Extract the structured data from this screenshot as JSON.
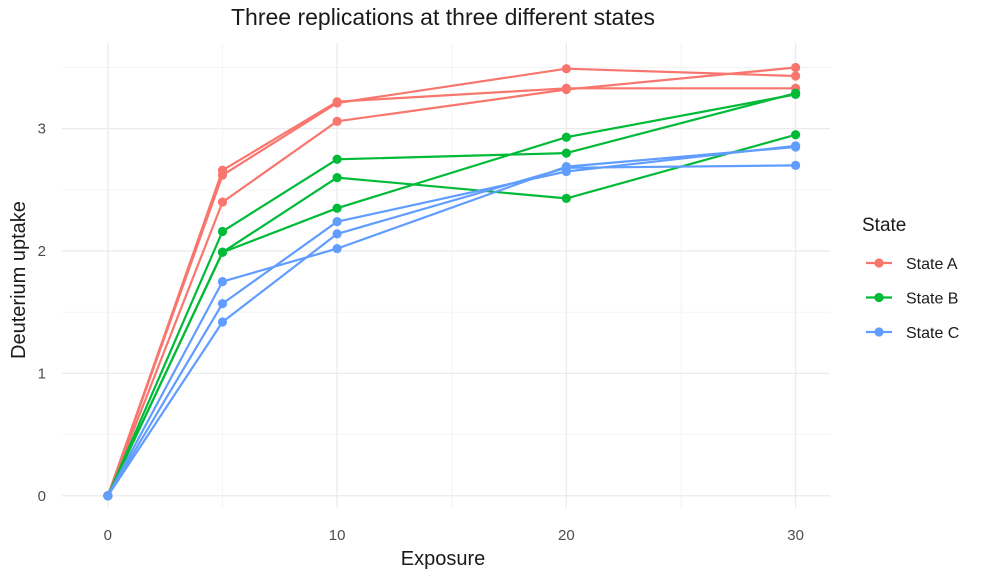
{
  "chart_data": {
    "type": "line",
    "title": "Three replications at three different states",
    "xlabel": "Exposure",
    "ylabel": "Deuterium uptake",
    "xlim": [
      -2,
      31.5
    ],
    "ylim": [
      -0.1,
      3.7
    ],
    "xticks": [
      0,
      10,
      20,
      30
    ],
    "yticks": [
      0,
      1,
      2,
      3
    ],
    "xminor": [
      5,
      15,
      25
    ],
    "yminor": [
      0.5,
      1.5,
      2.5,
      3.5
    ],
    "grid": true,
    "legend": {
      "title": "State",
      "position": "right",
      "entries": [
        {
          "label": "State A",
          "color": "#F8766D"
        },
        {
          "label": "State B",
          "color": "#00BA38"
        },
        {
          "label": "State C",
          "color": "#619CFF"
        }
      ]
    },
    "x": [
      0,
      5,
      10,
      20,
      30
    ],
    "series": [
      {
        "group": "State A",
        "color": "#F8766D",
        "values": [
          0,
          2.66,
          3.22,
          3.33,
          3.33
        ]
      },
      {
        "group": "State A",
        "color": "#F8766D",
        "values": [
          0,
          2.62,
          3.21,
          3.49,
          3.43
        ]
      },
      {
        "group": "State A",
        "color": "#F8766D",
        "values": [
          0,
          2.4,
          3.06,
          3.32,
          3.5
        ]
      },
      {
        "group": "State B",
        "color": "#00BA38",
        "values": [
          0,
          2.16,
          2.75,
          2.8,
          3.29
        ]
      },
      {
        "group": "State B",
        "color": "#00BA38",
        "values": [
          0,
          1.99,
          2.6,
          2.43,
          2.95
        ]
      },
      {
        "group": "State B",
        "color": "#00BA38",
        "values": [
          0,
          1.99,
          2.35,
          2.93,
          3.28
        ]
      },
      {
        "group": "State C",
        "color": "#619CFF",
        "values": [
          0,
          1.75,
          2.02,
          2.69,
          2.85
        ]
      },
      {
        "group": "State C",
        "color": "#619CFF",
        "values": [
          0,
          1.57,
          2.24,
          2.65,
          2.86
        ]
      },
      {
        "group": "State C",
        "color": "#619CFF",
        "values": [
          0,
          1.42,
          2.14,
          2.68,
          2.7
        ]
      }
    ]
  }
}
